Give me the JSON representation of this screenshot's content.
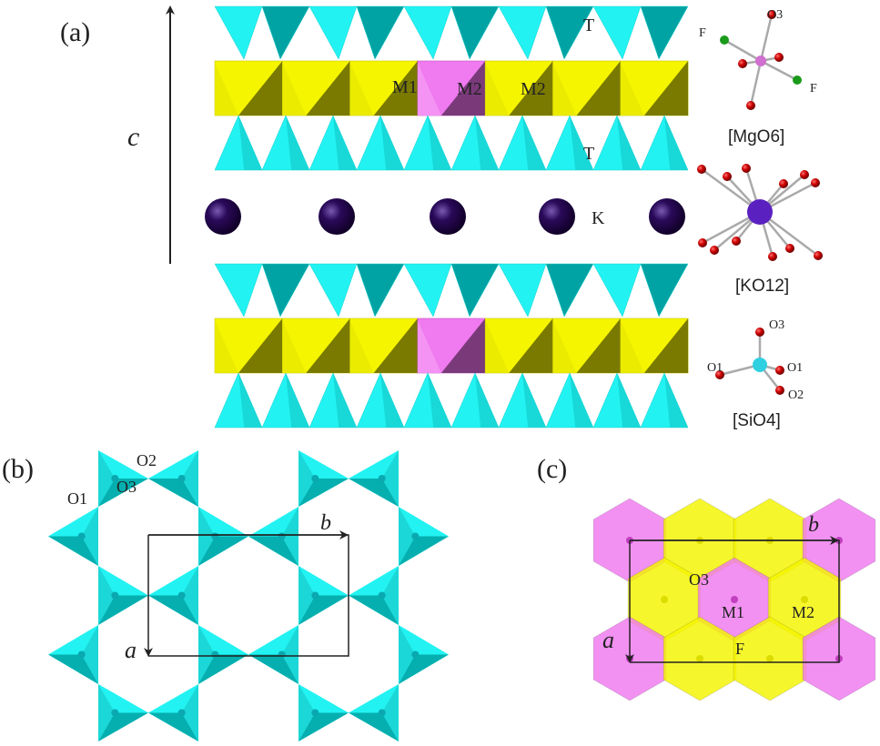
{
  "panels": {
    "a": {
      "label": "(a)",
      "axis_c": "c",
      "tetra_label_top": "T",
      "tetra_label_bottom": "T",
      "m1": "M1",
      "m2_first": "M2",
      "m2_second": "M2",
      "k": "K",
      "mgo6": {
        "title": "[MgO6]",
        "o3": "O3",
        "f1": "F",
        "f2": "F"
      },
      "ko12": {
        "title": "[KO12]"
      },
      "sio4": {
        "title": "[SiO4]",
        "o3": "O3",
        "o1_left": "O1",
        "o1_right": "O1",
        "o2": "O2"
      }
    },
    "b": {
      "label": "(b)",
      "o1": "O1",
      "o2": "O2",
      "o3": "O3",
      "axis_a": "a",
      "axis_b": "b"
    },
    "c": {
      "label": "(c)",
      "o3": "O3",
      "m1": "M1",
      "m2": "M2",
      "f": "F",
      "axis_a": "a",
      "axis_b": "b"
    }
  },
  "colors": {
    "tetra_light": "#22f2f2",
    "tetra_dark": "#00a3a3",
    "oct_yellow": "#f5f500",
    "oct_pink": "#f07af0",
    "potassium": "#2a0a5a",
    "oxygen": "#cc0000",
    "fluorine": "#1a9a1a"
  }
}
